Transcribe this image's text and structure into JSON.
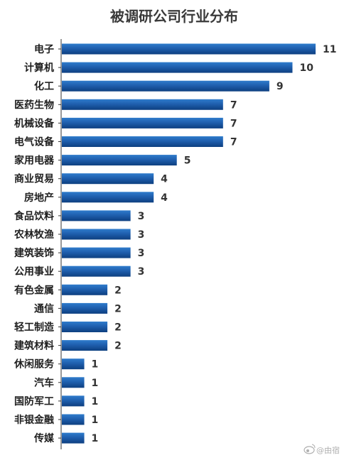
{
  "chart_data": {
    "type": "bar",
    "orientation": "horizontal",
    "title": "被调研公司行业分布",
    "xlabel": "",
    "ylabel": "",
    "categories": [
      "电子",
      "计算机",
      "化工",
      "医药生物",
      "机械设备",
      "电气设备",
      "家用电器",
      "商业贸易",
      "房地产",
      "食品饮料",
      "农林牧渔",
      "建筑装饰",
      "公用事业",
      "有色金属",
      "通信",
      "轻工制造",
      "建筑材料",
      "休闲服务",
      "汽车",
      "国防军工",
      "非银金融",
      "传媒"
    ],
    "values": [
      11,
      10,
      9,
      7,
      7,
      7,
      5,
      4,
      4,
      3,
      3,
      3,
      3,
      2,
      2,
      2,
      2,
      1,
      1,
      1,
      1,
      1
    ],
    "xlim": [
      0,
      11
    ],
    "grid": false,
    "legend": "none",
    "data_labels": true
  },
  "colors": {
    "bar_light": "#2f7ccc",
    "bar_dark": "#0d3f80",
    "axis": "#333333",
    "text": "#1f1f1f"
  },
  "watermark": {
    "icon": "weibo-logo-icon",
    "text": "@由宿"
  }
}
